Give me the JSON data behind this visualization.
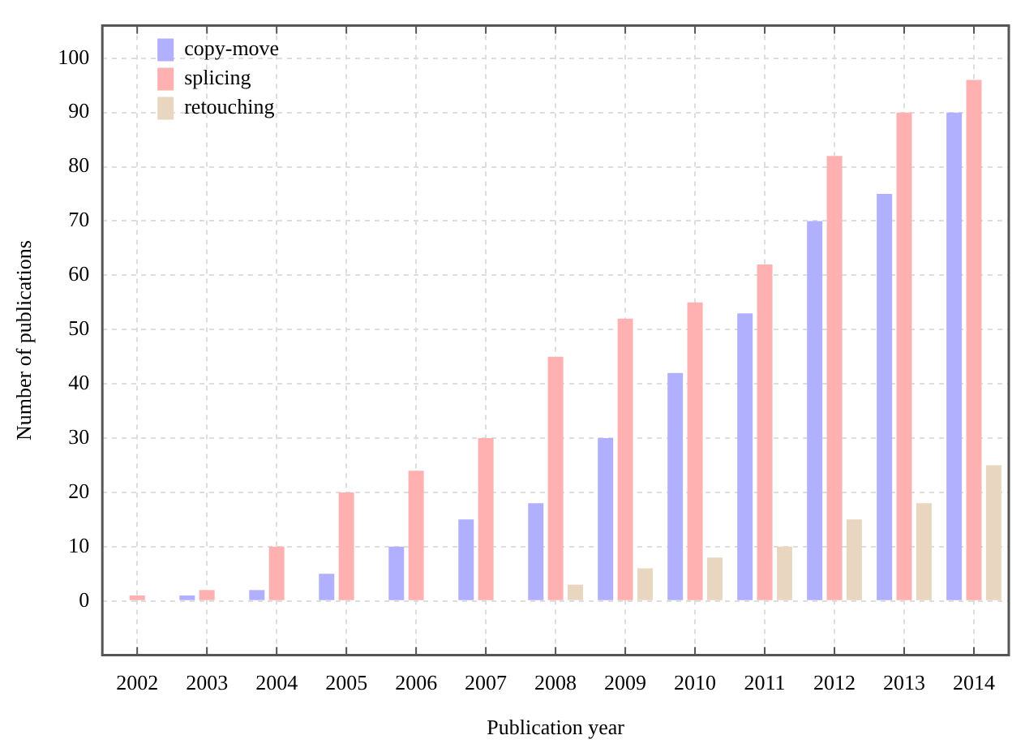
{
  "chart_data": {
    "type": "bar",
    "xlabel": "Publication year",
    "ylabel": "Number of publications",
    "categories": [
      "2002",
      "2003",
      "2004",
      "2005",
      "2006",
      "2007",
      "2008",
      "2009",
      "2010",
      "2011",
      "2012",
      "2013",
      "2014"
    ],
    "series": [
      {
        "name": "copy-move",
        "color": "#b0b0ff",
        "values": [
          0,
          1,
          2,
          5,
          10,
          15,
          18,
          30,
          42,
          53,
          70,
          75,
          90
        ]
      },
      {
        "name": "splicing",
        "color": "#ffb0b0",
        "values": [
          1,
          2,
          10,
          20,
          24,
          30,
          45,
          52,
          55,
          62,
          82,
          90,
          96
        ]
      },
      {
        "name": "retouching",
        "color": "#e8d6c0",
        "values": [
          0,
          0,
          0,
          0,
          0,
          0,
          3,
          6,
          8,
          10,
          15,
          18,
          25
        ]
      }
    ],
    "ylim": [
      -10,
      106
    ],
    "yticks": [
      0,
      10,
      20,
      30,
      40,
      50,
      60,
      70,
      80,
      90,
      100
    ],
    "grid": true,
    "legend": "top left"
  }
}
